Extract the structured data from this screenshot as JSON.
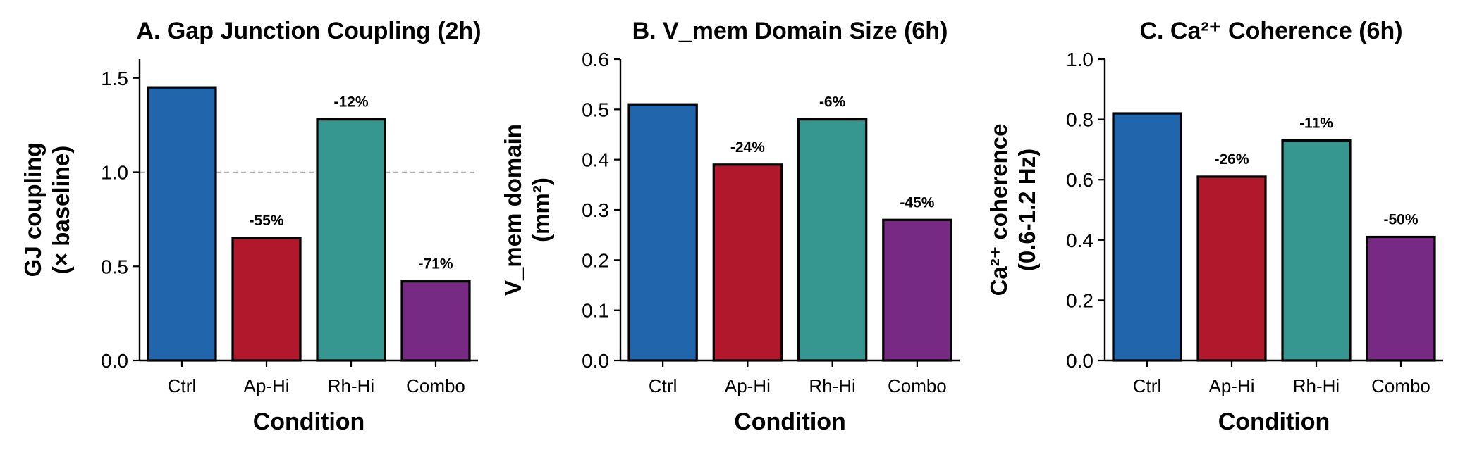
{
  "chart_data": [
    {
      "type": "bar",
      "title": "A. Gap Junction Coupling (2h)",
      "xlabel": "Condition",
      "ylabel": [
        "GJ coupling",
        "(× baseline)"
      ],
      "categories": [
        "Ctrl",
        "Ap-Hi",
        "Rh-Hi",
        "Combo"
      ],
      "values": [
        1.45,
        0.65,
        1.28,
        0.42
      ],
      "value_labels": [
        "",
        "-55%",
        "-12%",
        "-71%"
      ],
      "colors": [
        "#2166ac",
        "#b2182b",
        "#35978f",
        "#762a83"
      ],
      "ylim": [
        0,
        1.6
      ],
      "yticks": [
        0,
        0.5,
        1.0,
        1.5
      ],
      "ytick_labels": [
        "0.0",
        "0.5",
        "1.0",
        "1.5"
      ],
      "reference_line": 1.0
    },
    {
      "type": "bar",
      "title": "B. V_mem Domain Size (6h)",
      "xlabel": "Condition",
      "ylabel": [
        "V_mem domain",
        "(mm²)"
      ],
      "categories": [
        "Ctrl",
        "Ap-Hi",
        "Rh-Hi",
        "Combo"
      ],
      "values": [
        0.51,
        0.39,
        0.48,
        0.28
      ],
      "value_labels": [
        "",
        "-24%",
        "-6%",
        "-45%"
      ],
      "colors": [
        "#2166ac",
        "#b2182b",
        "#35978f",
        "#762a83"
      ],
      "ylim": [
        0,
        0.6
      ],
      "yticks": [
        0,
        0.1,
        0.2,
        0.3,
        0.4,
        0.5,
        0.6
      ],
      "ytick_labels": [
        "0.0",
        "0.1",
        "0.2",
        "0.3",
        "0.4",
        "0.5",
        "0.6"
      ]
    },
    {
      "type": "bar",
      "title": "C. Ca²⁺ Coherence (6h)",
      "xlabel": "Condition",
      "ylabel": [
        "Ca²⁺ coherence",
        "(0.6-1.2 Hz)"
      ],
      "categories": [
        "Ctrl",
        "Ap-Hi",
        "Rh-Hi",
        "Combo"
      ],
      "values": [
        0.82,
        0.61,
        0.73,
        0.41
      ],
      "value_labels": [
        "",
        "-26%",
        "-11%",
        "-50%"
      ],
      "colors": [
        "#2166ac",
        "#b2182b",
        "#35978f",
        "#762a83"
      ],
      "ylim": [
        0,
        1.0
      ],
      "yticks": [
        0,
        0.2,
        0.4,
        0.6,
        0.8,
        1.0
      ],
      "ytick_labels": [
        "0.0",
        "0.2",
        "0.4",
        "0.6",
        "0.8",
        "1.0"
      ]
    }
  ]
}
